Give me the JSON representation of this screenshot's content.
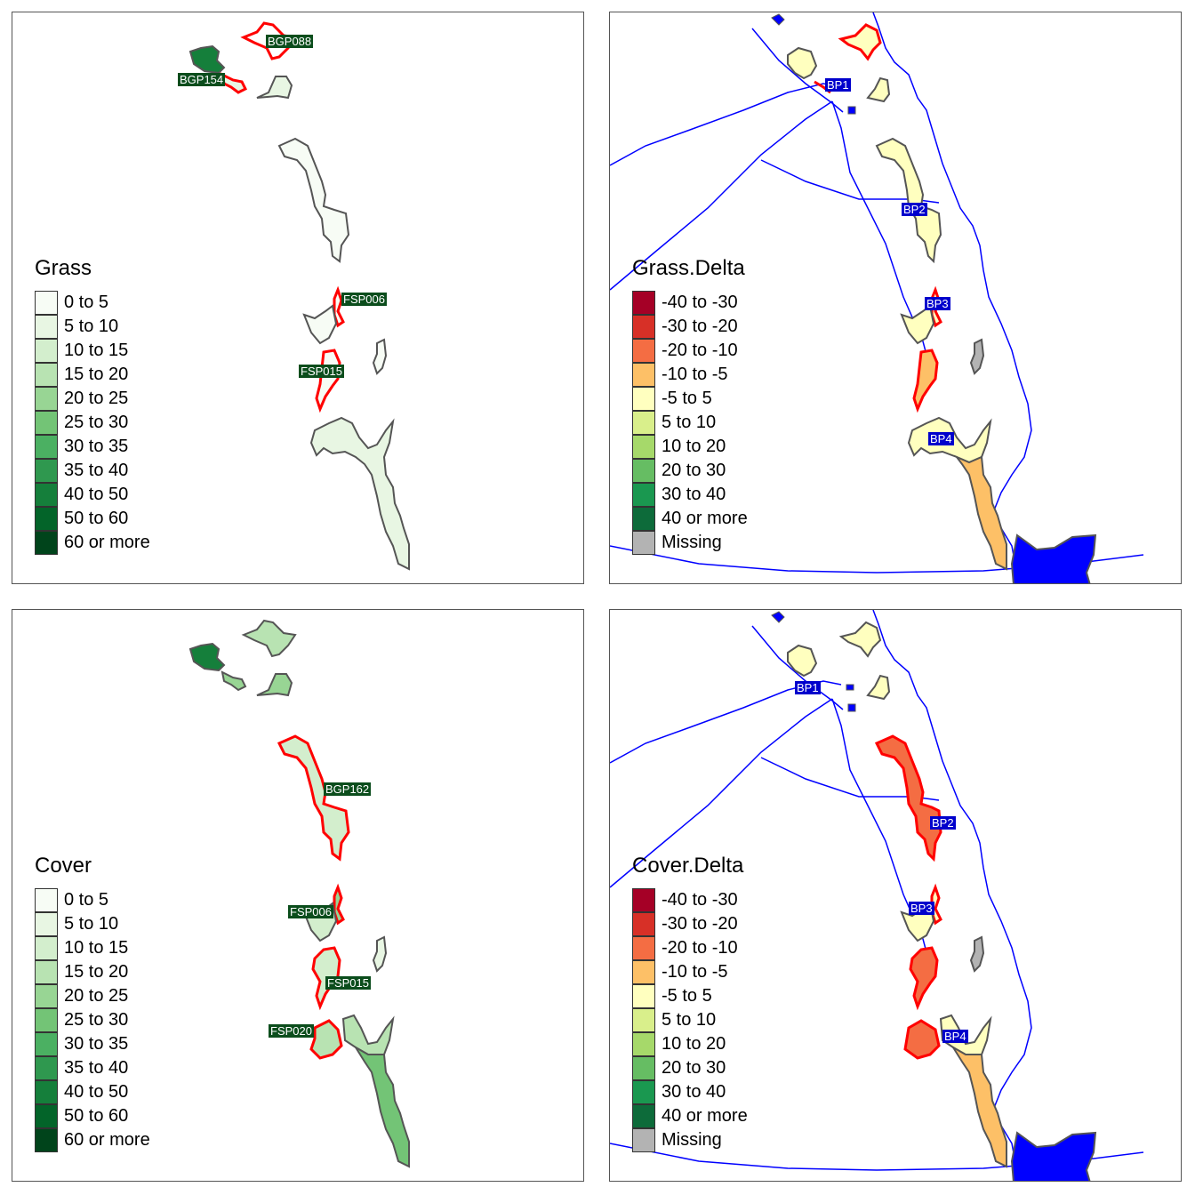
{
  "panels": {
    "grass": {
      "legend_title": "Grass",
      "legend": [
        {
          "label": "0 to 5",
          "color": "#f7fcf5"
        },
        {
          "label": "5 to 10",
          "color": "#e8f6e3"
        },
        {
          "label": "10 to 15",
          "color": "#d3eecd"
        },
        {
          "label": "15 to 20",
          "color": "#b8e3b2"
        },
        {
          "label": "20 to 25",
          "color": "#98d594"
        },
        {
          "label": "25 to 30",
          "color": "#73c476"
        },
        {
          "label": "30 to 35",
          "color": "#4bb062"
        },
        {
          "label": "35 to 40",
          "color": "#2f984f"
        },
        {
          "label": "40 to 50",
          "color": "#157f3b"
        },
        {
          "label": "50 to 60",
          "color": "#036429"
        },
        {
          "label": "60 or more",
          "color": "#00441b"
        }
      ],
      "labels": [
        "BGP088",
        "BGP154",
        "FSP006",
        "FSP015"
      ]
    },
    "grass_delta": {
      "legend_title": "Grass.Delta",
      "legend": [
        {
          "label": "-40 to -30",
          "color": "#a50026"
        },
        {
          "label": "-30 to -20",
          "color": "#d73027"
        },
        {
          "label": "-20 to -10",
          "color": "#f46d43"
        },
        {
          "label": "-10 to -5",
          "color": "#fdc067"
        },
        {
          "label": "-5 to 5",
          "color": "#ffffbf"
        },
        {
          "label": "5 to 10",
          "color": "#d9ef8b"
        },
        {
          "label": "10 to 20",
          "color": "#a6d96a"
        },
        {
          "label": "20 to 30",
          "color": "#66bd63"
        },
        {
          "label": "30 to 40",
          "color": "#1a9850"
        },
        {
          "label": "40 or more",
          "color": "#0d6b3a"
        },
        {
          "label": "Missing",
          "color": "#b3b3b3"
        }
      ],
      "labels": [
        "BP1",
        "BP2",
        "BP3",
        "BP4"
      ]
    },
    "cover": {
      "legend_title": "Cover",
      "legend": [
        {
          "label": "0 to 5",
          "color": "#f7fcf5"
        },
        {
          "label": "5 to 10",
          "color": "#e8f6e3"
        },
        {
          "label": "10 to 15",
          "color": "#d3eecd"
        },
        {
          "label": "15 to 20",
          "color": "#b8e3b2"
        },
        {
          "label": "20 to 25",
          "color": "#98d594"
        },
        {
          "label": "25 to 30",
          "color": "#73c476"
        },
        {
          "label": "30 to 35",
          "color": "#4bb062"
        },
        {
          "label": "35 to 40",
          "color": "#2f984f"
        },
        {
          "label": "40 to 50",
          "color": "#157f3b"
        },
        {
          "label": "50 to 60",
          "color": "#036429"
        },
        {
          "label": "60 or more",
          "color": "#00441b"
        }
      ],
      "labels": [
        "BGP162",
        "FSP006",
        "FSP015",
        "FSP020"
      ]
    },
    "cover_delta": {
      "legend_title": "Cover.Delta",
      "legend": [
        {
          "label": "-40 to -30",
          "color": "#a50026"
        },
        {
          "label": "-30 to -20",
          "color": "#d73027"
        },
        {
          "label": "-20 to -10",
          "color": "#f46d43"
        },
        {
          "label": "-10 to -5",
          "color": "#fdc067"
        },
        {
          "label": "-5 to 5",
          "color": "#ffffbf"
        },
        {
          "label": "5 to 10",
          "color": "#d9ef8b"
        },
        {
          "label": "10 to 20",
          "color": "#a6d96a"
        },
        {
          "label": "20 to 30",
          "color": "#66bd63"
        },
        {
          "label": "30 to 40",
          "color": "#1a9850"
        },
        {
          "label": "40 or more",
          "color": "#0d6b3a"
        },
        {
          "label": "Missing",
          "color": "#b3b3b3"
        }
      ],
      "labels": [
        "BP1",
        "BP2",
        "BP3",
        "BP4"
      ]
    }
  },
  "colors": {
    "highlight_outline": "#ff0000",
    "region_outline": "#555555",
    "river": "#0000ff",
    "water": "#0000ff",
    "label_green": "#0b4d1c",
    "label_blue": "#0000cc"
  }
}
